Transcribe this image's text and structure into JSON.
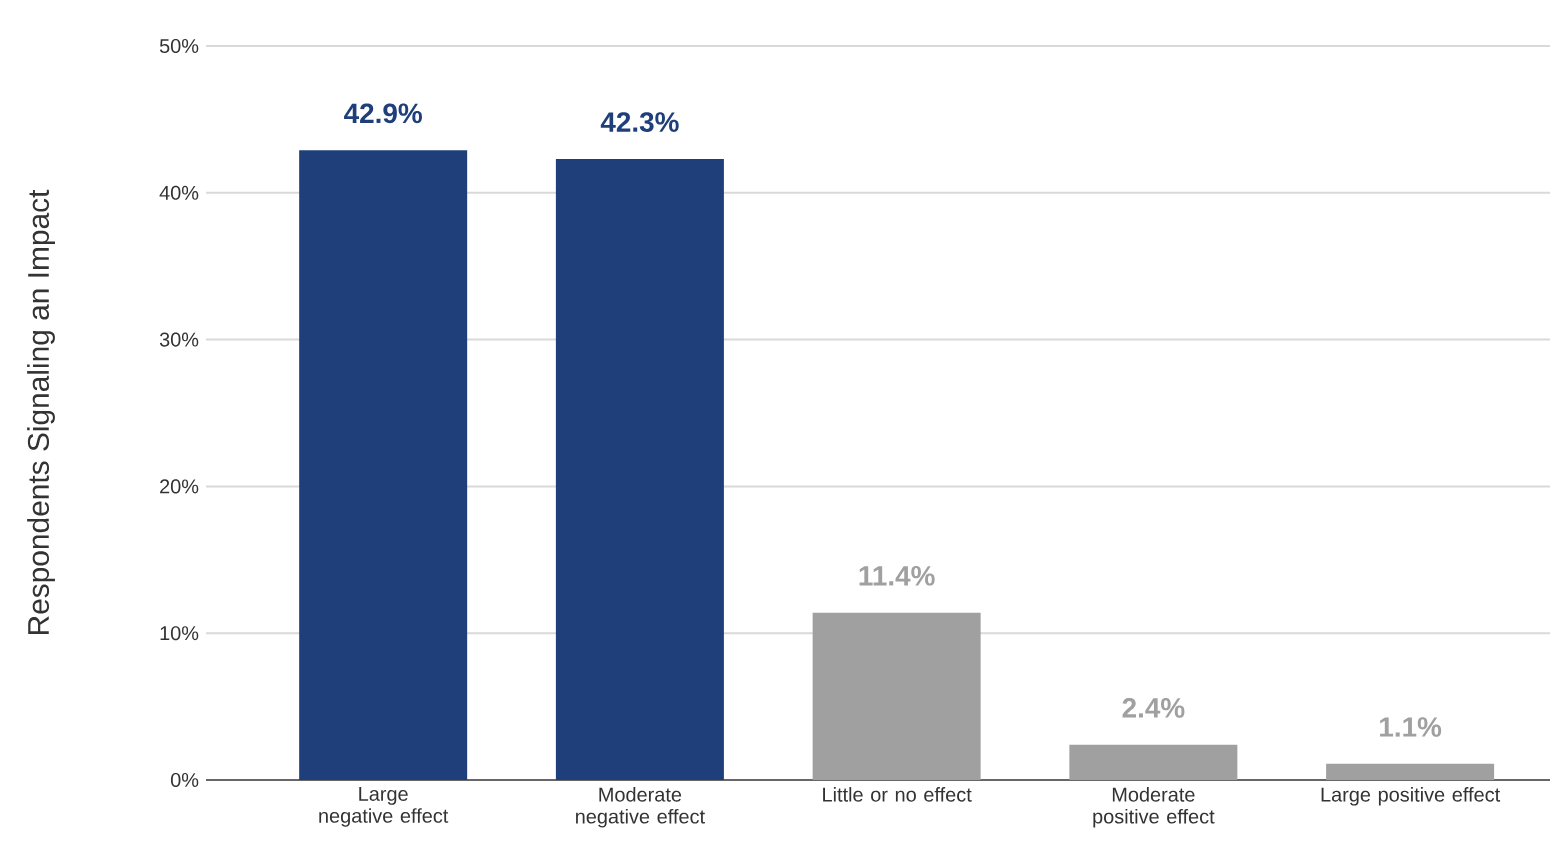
{
  "chart_data": {
    "type": "bar",
    "ylabel": "Respondents Signaling an Impact",
    "categories": [
      "Large negative effect",
      "Moderate negative effect",
      "Little or no effect",
      "Moderate positive effect",
      "Large positive effect"
    ],
    "values": [
      42.9,
      42.3,
      11.4,
      2.4,
      1.1
    ],
    "colors": [
      "#1f3f7a",
      "#1f3f7a",
      "#a0a0a0",
      "#a0a0a0",
      "#a0a0a0"
    ],
    "value_labels": [
      "42.9%",
      "42.3%",
      "11.4%",
      "2.4%",
      "1.1%"
    ],
    "ylim": [
      0,
      50
    ],
    "yticks": [
      {
        "value": 0,
        "label": "0%"
      },
      {
        "value": 10,
        "label": "10%"
      },
      {
        "value": 20,
        "label": "20%"
      },
      {
        "value": 30,
        "label": "30%"
      },
      {
        "value": 40,
        "label": "40%"
      },
      {
        "value": 50,
        "label": "50%"
      }
    ],
    "grid": "y"
  }
}
